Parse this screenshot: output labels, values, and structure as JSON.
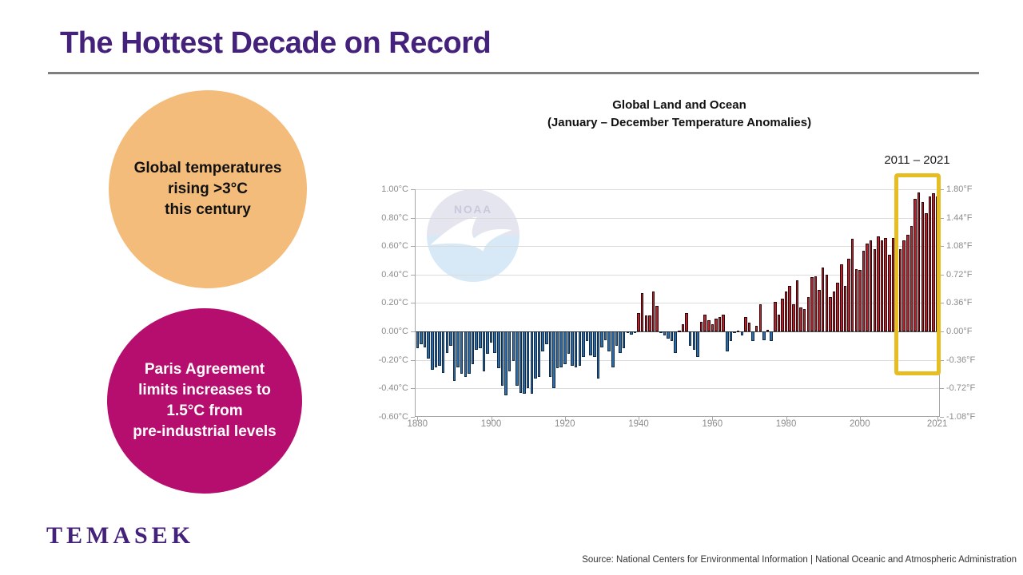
{
  "slide": {
    "title": "The Hottest Decade on Record",
    "logo": "TEMASEK",
    "source": "Source: National Centers for Environmental Information | National Oceanic and Atmospheric Administration"
  },
  "callouts": {
    "orange": {
      "color": "#F4BC7B",
      "lines": [
        "Global temperatures",
        "rising >3°C",
        "this century"
      ]
    },
    "magenta": {
      "color": "#B60E6F",
      "lines": [
        "Paris Agreement",
        "limits increases to",
        "1.5°C from",
        "pre-industrial levels"
      ]
    }
  },
  "chart_data": {
    "type": "bar",
    "title": "Global Land and Ocean",
    "subtitle": "(January – December Temperature Anomalies)",
    "watermark": "NOAA",
    "x_start": 1880,
    "x_end": 2021,
    "values": [
      -0.12,
      -0.09,
      -0.11,
      -0.19,
      -0.27,
      -0.25,
      -0.24,
      -0.29,
      -0.15,
      -0.1,
      -0.35,
      -0.25,
      -0.3,
      -0.32,
      -0.3,
      -0.23,
      -0.13,
      -0.12,
      -0.28,
      -0.16,
      -0.08,
      -0.15,
      -0.26,
      -0.38,
      -0.45,
      -0.28,
      -0.21,
      -0.38,
      -0.43,
      -0.44,
      -0.4,
      -0.44,
      -0.33,
      -0.32,
      -0.14,
      -0.09,
      -0.32,
      -0.4,
      -0.26,
      -0.25,
      -0.23,
      -0.16,
      -0.24,
      -0.25,
      -0.24,
      -0.18,
      -0.07,
      -0.17,
      -0.18,
      -0.33,
      -0.11,
      -0.06,
      -0.14,
      -0.25,
      -0.1,
      -0.15,
      -0.12,
      -0.01,
      -0.02,
      -0.01,
      0.13,
      0.27,
      0.11,
      0.11,
      0.28,
      0.18,
      -0.01,
      -0.03,
      -0.05,
      -0.07,
      -0.15,
      0.0,
      0.05,
      0.13,
      -0.1,
      -0.13,
      -0.18,
      0.07,
      0.12,
      0.08,
      0.05,
      0.09,
      0.1,
      0.12,
      -0.14,
      -0.07,
      -0.01,
      0.0,
      -0.03,
      0.1,
      0.06,
      -0.07,
      0.04,
      0.19,
      -0.06,
      0.01,
      -0.07,
      0.21,
      0.12,
      0.23,
      0.28,
      0.32,
      0.19,
      0.36,
      0.17,
      0.16,
      0.24,
      0.38,
      0.39,
      0.29,
      0.45,
      0.4,
      0.24,
      0.28,
      0.34,
      0.47,
      0.32,
      0.51,
      0.65,
      0.44,
      0.43,
      0.57,
      0.62,
      0.64,
      0.58,
      0.67,
      0.64,
      0.66,
      0.54,
      0.66,
      0.72,
      0.58,
      0.64,
      0.68,
      0.74,
      0.93,
      0.98,
      0.91,
      0.83,
      0.95,
      0.97,
      0.95
    ],
    "unit_left": "°C",
    "unit_right": "°F",
    "ylim_c": [
      -0.6,
      1.0
    ],
    "ytick_values_c": [
      1.0,
      0.8,
      0.6,
      0.4,
      0.2,
      0.0,
      -0.2,
      -0.4,
      -0.6
    ],
    "yticks_left": [
      "1.00°C",
      "0.80°C",
      "0.60°C",
      "0.40°C",
      "0.20°C",
      "0.00°C",
      "-0.20°C",
      "-0.40°C",
      "-0.60°C"
    ],
    "yticks_right": [
      "1.80°F",
      "1.44°F",
      "1.08°F",
      "0.72°F",
      "0.36°F",
      "0.00°F",
      "-0.36°F",
      "-0.72°F",
      "-1.08°F"
    ],
    "xticks": [
      1880,
      1900,
      1920,
      1940,
      1960,
      1980,
      2000,
      2021
    ],
    "highlight": {
      "label": "2011 – 2021",
      "start_year": 2011,
      "end_year": 2021
    },
    "legend": "none",
    "grid": "horizontal",
    "colors": {
      "positive": "#B2272F",
      "positive_border": "#30080B",
      "negative": "#2E6DA8",
      "negative_border": "#122A44",
      "highlight_box": "#E6BE23",
      "gridline": "#DBDBDB",
      "axis": "#A6A6A6",
      "tick_label": "#8C8C8C",
      "zero_line": "#4D4D4D"
    }
  }
}
